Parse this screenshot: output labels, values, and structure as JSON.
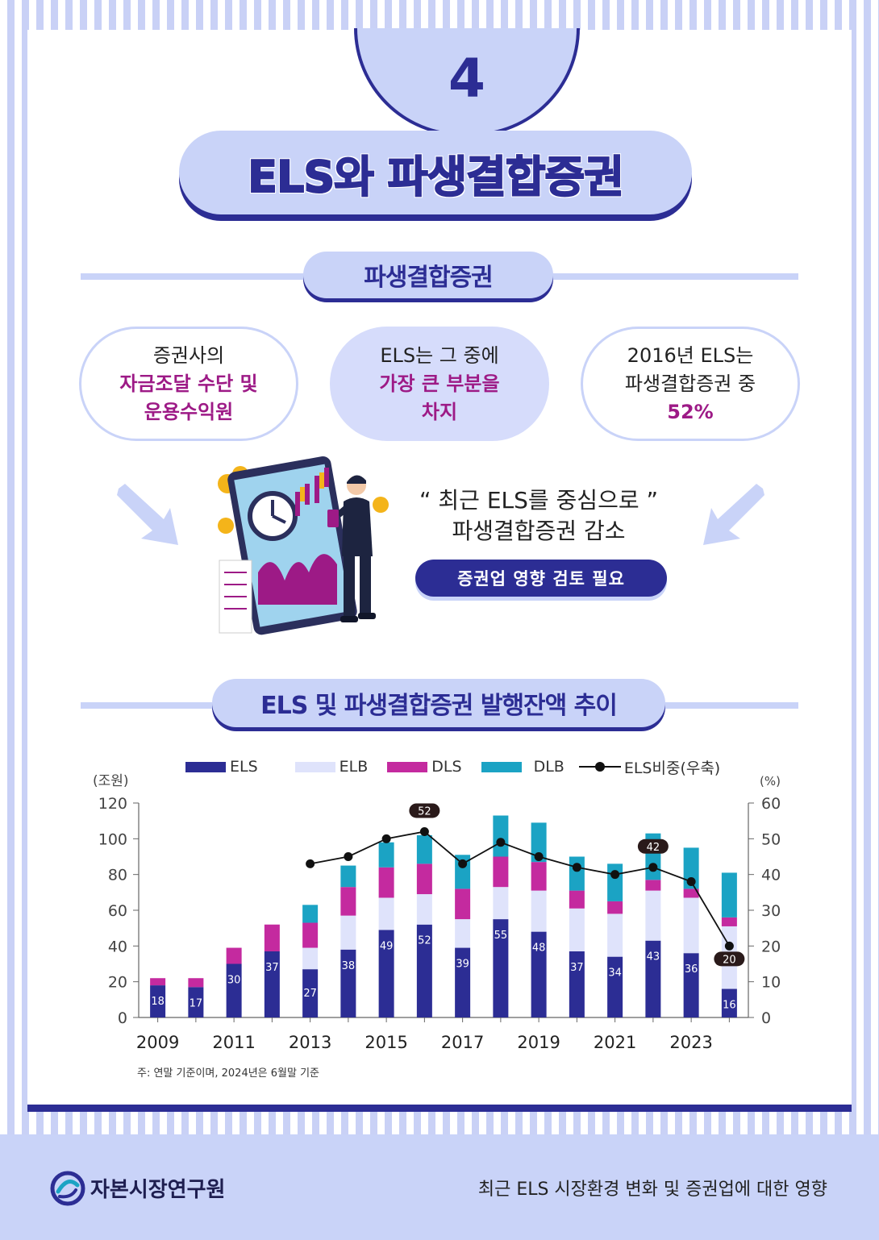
{
  "header": {
    "section_number": "4",
    "title": "ELS와 파생결합증권"
  },
  "section1": {
    "heading": "파생결합증권",
    "bubbles": [
      {
        "line1": "증권사의",
        "line2": "자금조달 수단 및",
        "line3": "운용수익원"
      },
      {
        "line1": "ELS는 그 중에",
        "line2": "가장 큰 부분을",
        "line3": "차지"
      },
      {
        "line1": "2016년 ELS는",
        "line2": "파생결합증권 중",
        "line3": "52%"
      }
    ],
    "quote_line1": "“ 최근 ELS를 중심으로 ”",
    "quote_line2": "파생결합증권 감소",
    "cta_label": "증권업 영향 검토 필요"
  },
  "section2": {
    "heading": "ELS 및 파생결합증권 발행잔액 추이",
    "note": "주: 연말 기준이며, 2024년은 6월말 기준"
  },
  "chart_data": {
    "type": "bar",
    "stacked": true,
    "categories": [
      "2009",
      "2010",
      "2011",
      "2012",
      "2013",
      "2014",
      "2015",
      "2016",
      "2017",
      "2018",
      "2019",
      "2020",
      "2021",
      "2022",
      "2023",
      "2024"
    ],
    "x_tick_labels": [
      "2009",
      "2011",
      "2013",
      "2015",
      "2017",
      "2019",
      "2021",
      "2023"
    ],
    "ylabel": "(조원)",
    "y2label": "(%)",
    "ylim": [
      0,
      120
    ],
    "y2lim": [
      0,
      60
    ],
    "yticks": [
      0,
      20,
      40,
      60,
      80,
      100,
      120
    ],
    "y2ticks": [
      0,
      10,
      20,
      30,
      40,
      50,
      60
    ],
    "legend_position": "top",
    "grid": false,
    "series": [
      {
        "name": "ELS",
        "color": "#2c2d94",
        "values": [
          18,
          17,
          30,
          37,
          27,
          38,
          49,
          52,
          39,
          55,
          48,
          37,
          34,
          43,
          36,
          16
        ]
      },
      {
        "name": "ELB",
        "color": "#dfe3fb",
        "values": [
          0,
          0,
          0,
          0,
          12,
          19,
          18,
          17,
          16,
          18,
          23,
          24,
          24,
          28,
          31,
          35
        ]
      },
      {
        "name": "DLS",
        "color": "#c42a9f",
        "values": [
          4,
          5,
          9,
          15,
          14,
          16,
          17,
          17,
          17,
          17,
          16,
          10,
          7,
          6,
          5,
          5
        ]
      },
      {
        "name": "DLB",
        "color": "#1ba3c4",
        "values": [
          0,
          0,
          0,
          0,
          10,
          12,
          14,
          16,
          19,
          23,
          22,
          19,
          21,
          26,
          23,
          25
        ]
      },
      {
        "name": "ELS비중(우축)",
        "type": "line",
        "axis": "right",
        "color": "#111111",
        "values": [
          null,
          null,
          null,
          null,
          43,
          45,
          50,
          52,
          43,
          49,
          45,
          42,
          40,
          42,
          38,
          20
        ]
      }
    ],
    "bar_labels": [
      "18",
      "17",
      "30",
      "37",
      "27",
      "38",
      "49",
      "52",
      "39",
      "55",
      "48",
      "37",
      "34",
      "43",
      "36",
      "16"
    ],
    "line_labels": [
      {
        "index": 7,
        "text": "52"
      },
      {
        "index": 13,
        "text": "42"
      },
      {
        "index": 15,
        "text": "20"
      }
    ]
  },
  "footer": {
    "org_name": "자본시장연구원",
    "caption": "최근 ELS 시장환경 변화 및 증권업에 대한 영향"
  }
}
